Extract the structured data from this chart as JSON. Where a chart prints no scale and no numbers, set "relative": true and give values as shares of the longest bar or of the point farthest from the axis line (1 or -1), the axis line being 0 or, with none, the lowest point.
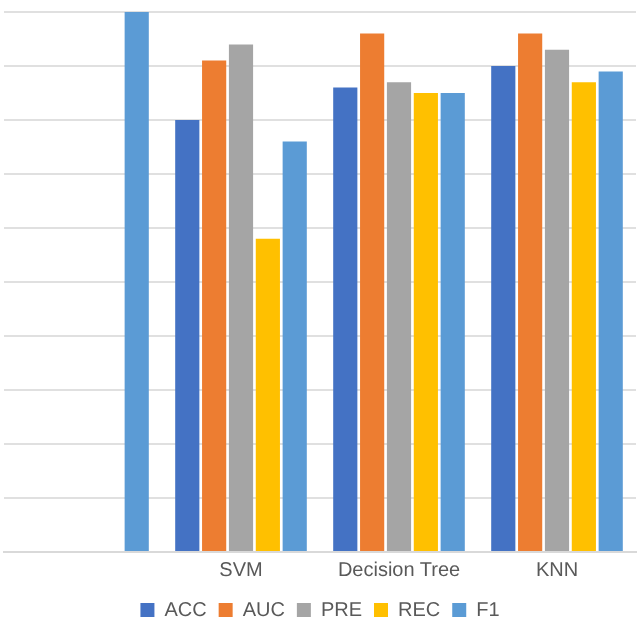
{
  "chart_data": {
    "type": "bar",
    "relative": true,
    "categories": [
      null,
      "SVM",
      "Decision Tree",
      "KNN"
    ],
    "series": [
      {
        "name": "ACC",
        "color": "#4472c4",
        "values": [
          null,
          0.8,
          0.86,
          0.9
        ]
      },
      {
        "name": "AUC",
        "color": "#ed7d31",
        "values": [
          null,
          0.91,
          0.96,
          0.96
        ]
      },
      {
        "name": "PRE",
        "color": "#a5a5a5",
        "values": [
          null,
          0.94,
          0.87,
          0.93
        ]
      },
      {
        "name": "REC",
        "color": "#ffc000",
        "values": [
          null,
          0.58,
          0.85,
          0.87
        ]
      },
      {
        "name": "F1",
        "color": "#5b9bd5",
        "values": [
          1,
          0.76,
          0.85,
          0.89
        ]
      }
    ],
    "grid": "y",
    "legend": "bottom"
  }
}
